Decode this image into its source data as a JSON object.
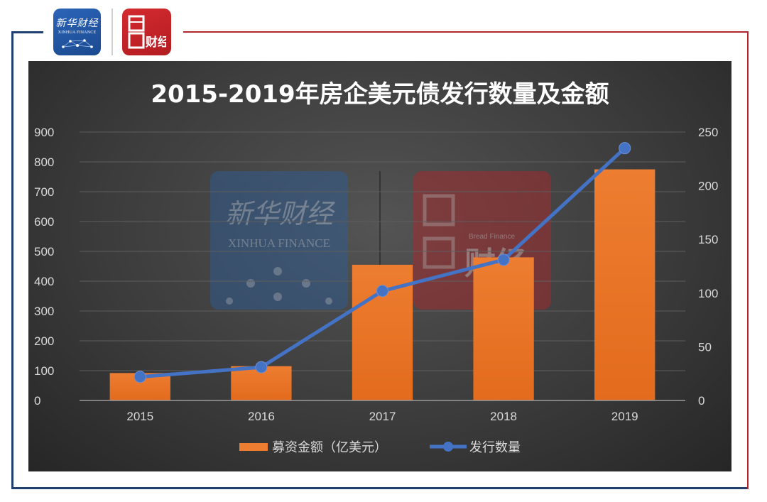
{
  "branding": {
    "xinhua_cn": "新华财经",
    "xinhua_en": "XINHUA FINANCE",
    "bread_en": "Bread Finance",
    "bread_cn": "财经"
  },
  "colors": {
    "frame_blue": "#1f3f6e",
    "frame_red": "#b3262a",
    "bar_color": "#ed7d31",
    "line_color": "#4472c4",
    "panel_bg": "#3c3c3c"
  },
  "chart_data": {
    "type": "bar+line",
    "title": "2015-2019年房企美元债发行数量及金额",
    "categories": [
      "2015",
      "2016",
      "2017",
      "2018",
      "2019"
    ],
    "series": [
      {
        "name": "募资金额（亿美元）",
        "type": "bar",
        "axis": "left",
        "values": [
          92,
          115,
          455,
          480,
          775
        ]
      },
      {
        "name": "发行数量",
        "type": "line",
        "axis": "right",
        "values": [
          22,
          31,
          102,
          131,
          235
        ]
      }
    ],
    "y_left": {
      "min": 0,
      "max": 900,
      "ticks": [
        0,
        100,
        200,
        300,
        400,
        500,
        600,
        700,
        800,
        900
      ]
    },
    "y_right": {
      "min": 0,
      "max": 250,
      "ticks": [
        0,
        50,
        100,
        150,
        200,
        250
      ]
    },
    "grid": true,
    "legend_position": "bottom"
  }
}
